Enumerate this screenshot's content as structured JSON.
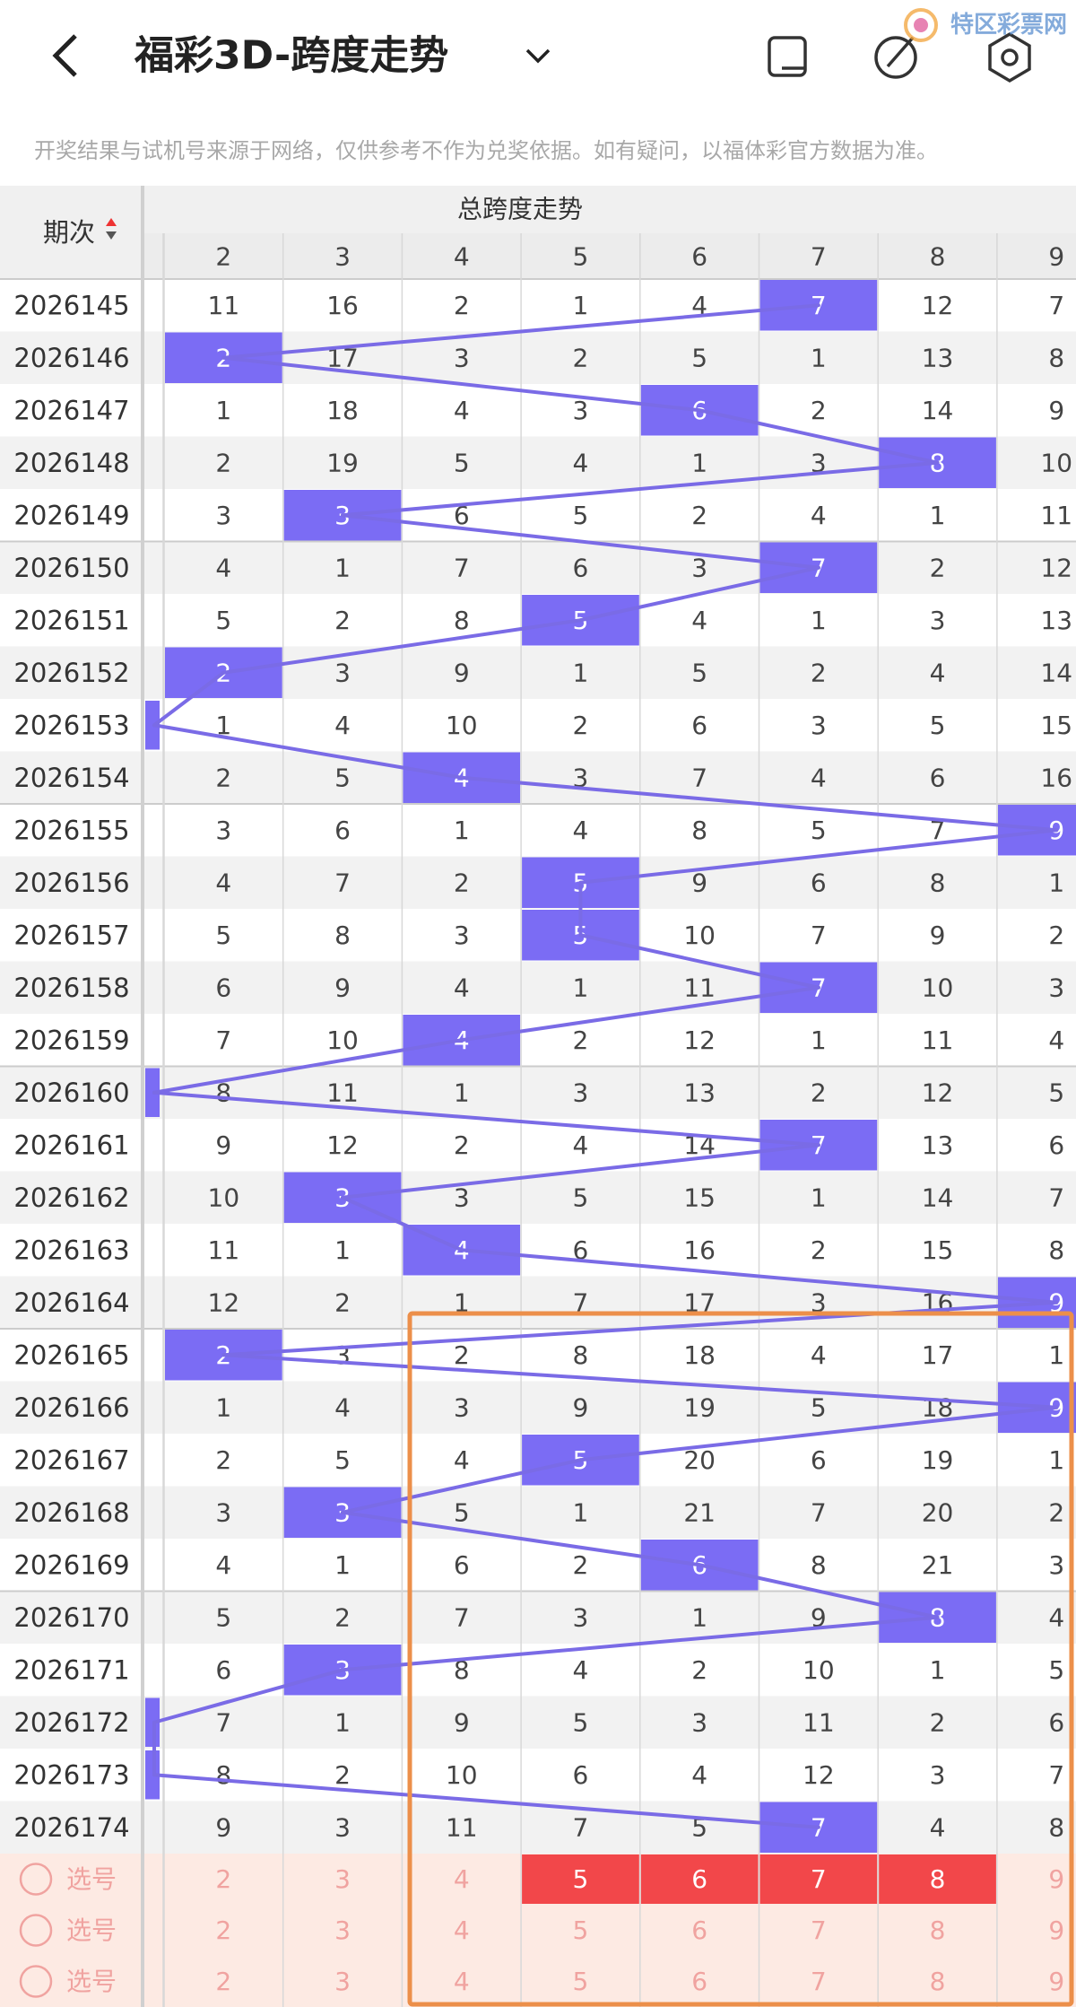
{
  "header": {
    "title": "福彩3D-跨度走势",
    "logo": "特区彩票网"
  },
  "notice": "开奖结果与试机号来源于网络，仅供参考不作为兑奖依据。如有疑问，以福体彩官方数据为准。",
  "table": {
    "issue_header": "期次",
    "group_header": "总跨度走势",
    "columns": [
      2,
      3,
      4,
      5,
      6,
      7,
      8,
      9
    ],
    "rows": [
      {
        "issue": "2026145",
        "cells": [
          11,
          16,
          2,
          1,
          4,
          7,
          12,
          7
        ],
        "hit": 7
      },
      {
        "issue": "2026146",
        "cells": [
          2,
          17,
          3,
          2,
          5,
          1,
          13,
          8
        ],
        "hit": 2
      },
      {
        "issue": "2026147",
        "cells": [
          1,
          18,
          4,
          3,
          6,
          2,
          14,
          9
        ],
        "hit": 6
      },
      {
        "issue": "2026148",
        "cells": [
          2,
          19,
          5,
          4,
          1,
          3,
          8,
          10
        ],
        "hit": 8
      },
      {
        "issue": "2026149",
        "cells": [
          3,
          3,
          6,
          5,
          2,
          4,
          1,
          11
        ],
        "hit": 3
      },
      {
        "issue": "2026150",
        "cells": [
          4,
          1,
          7,
          6,
          3,
          7,
          2,
          12
        ],
        "hit": 7
      },
      {
        "issue": "2026151",
        "cells": [
          5,
          2,
          8,
          5,
          4,
          1,
          3,
          13
        ],
        "hit": 5
      },
      {
        "issue": "2026152",
        "cells": [
          2,
          3,
          9,
          1,
          5,
          2,
          4,
          14
        ],
        "hit": 2
      },
      {
        "issue": "2026153",
        "cells": [
          1,
          4,
          10,
          2,
          6,
          3,
          5,
          15
        ],
        "hit": null
      },
      {
        "issue": "2026154",
        "cells": [
          2,
          5,
          4,
          3,
          7,
          4,
          6,
          16
        ],
        "hit": 4
      },
      {
        "issue": "2026155",
        "cells": [
          3,
          6,
          1,
          4,
          8,
          5,
          7,
          9
        ],
        "hit": 9
      },
      {
        "issue": "2026156",
        "cells": [
          4,
          7,
          2,
          5,
          9,
          6,
          8,
          1
        ],
        "hit": 5
      },
      {
        "issue": "2026157",
        "cells": [
          5,
          8,
          3,
          5,
          10,
          7,
          9,
          2
        ],
        "hit": 5
      },
      {
        "issue": "2026158",
        "cells": [
          6,
          9,
          4,
          1,
          11,
          7,
          10,
          3
        ],
        "hit": 7
      },
      {
        "issue": "2026159",
        "cells": [
          7,
          10,
          4,
          2,
          12,
          1,
          11,
          4
        ],
        "hit": 4
      },
      {
        "issue": "2026160",
        "cells": [
          8,
          11,
          1,
          3,
          13,
          2,
          12,
          5
        ],
        "hit": null
      },
      {
        "issue": "2026161",
        "cells": [
          9,
          12,
          2,
          4,
          14,
          7,
          13,
          6
        ],
        "hit": 7
      },
      {
        "issue": "2026162",
        "cells": [
          10,
          3,
          3,
          5,
          15,
          1,
          14,
          7
        ],
        "hit": 3
      },
      {
        "issue": "2026163",
        "cells": [
          11,
          1,
          4,
          6,
          16,
          2,
          15,
          8
        ],
        "hit": 4
      },
      {
        "issue": "2026164",
        "cells": [
          12,
          2,
          1,
          7,
          17,
          3,
          16,
          9
        ],
        "hit": 9
      },
      {
        "issue": "2026165",
        "cells": [
          2,
          3,
          2,
          8,
          18,
          4,
          17,
          1
        ],
        "hit": 2
      },
      {
        "issue": "2026166",
        "cells": [
          1,
          4,
          3,
          9,
          19,
          5,
          18,
          9
        ],
        "hit": 9
      },
      {
        "issue": "2026167",
        "cells": [
          2,
          5,
          4,
          5,
          20,
          6,
          19,
          1
        ],
        "hit": 5
      },
      {
        "issue": "2026168",
        "cells": [
          3,
          3,
          5,
          1,
          21,
          7,
          20,
          2
        ],
        "hit": 3
      },
      {
        "issue": "2026169",
        "cells": [
          4,
          1,
          6,
          2,
          6,
          8,
          21,
          3
        ],
        "hit": 6
      },
      {
        "issue": "2026170",
        "cells": [
          5,
          2,
          7,
          3,
          1,
          9,
          8,
          4
        ],
        "hit": 8
      },
      {
        "issue": "2026171",
        "cells": [
          6,
          3,
          8,
          4,
          2,
          10,
          1,
          5
        ],
        "hit": 3
      },
      {
        "issue": "2026172",
        "cells": [
          7,
          1,
          9,
          5,
          3,
          11,
          2,
          6
        ],
        "hit": null
      },
      {
        "issue": "2026173",
        "cells": [
          8,
          2,
          10,
          6,
          4,
          12,
          3,
          7
        ],
        "hit": null
      },
      {
        "issue": "2026174",
        "cells": [
          9,
          3,
          11,
          7,
          5,
          7,
          4,
          8
        ],
        "hit": 7
      }
    ],
    "pick_label": "选号",
    "picks": [
      {
        "selected": [
          5,
          6,
          7,
          8
        ]
      },
      {
        "selected": []
      },
      {
        "selected": []
      }
    ]
  }
}
